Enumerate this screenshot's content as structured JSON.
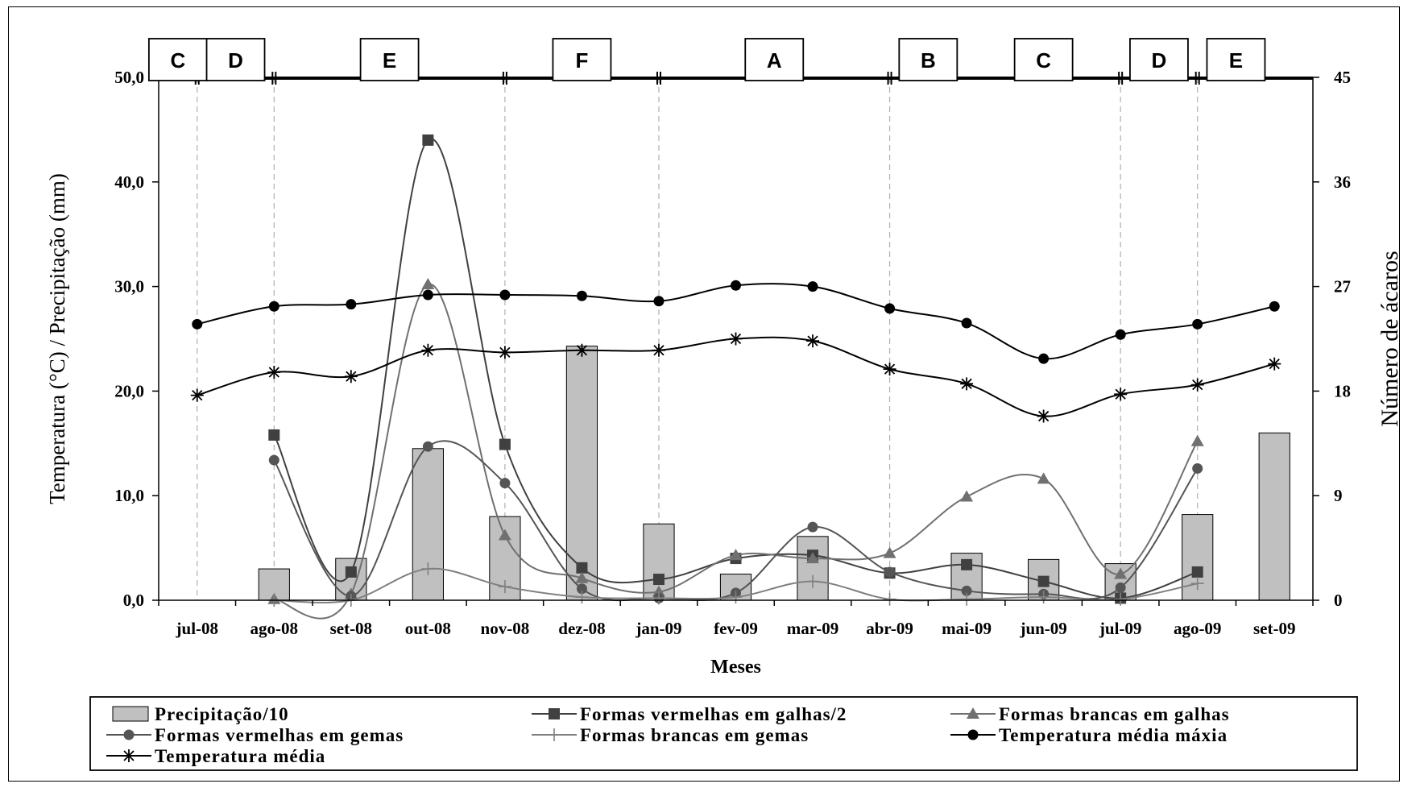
{
  "chart_data": {
    "type": "line",
    "xlabel": "Meses",
    "ylabel_left": "Temperatura (°C) / Precipitação (mm)",
    "ylabel_right": "Número de ácaros",
    "ylim_left": [
      0,
      50
    ],
    "ylim_right": [
      0,
      45
    ],
    "yticks_left": [
      "0,0",
      "10,0",
      "20,0",
      "30,0",
      "40,0",
      "50,0"
    ],
    "yticks_right": [
      "0",
      "9",
      "18",
      "27",
      "36",
      "45"
    ],
    "categories": [
      "jul-08",
      "ago-08",
      "set-08",
      "out-08",
      "nov-08",
      "dez-08",
      "jan-09",
      "fev-09",
      "mar-09",
      "abr-09",
      "mai-09",
      "jun-09",
      "jul-09",
      "ago-09",
      "set-09"
    ],
    "phases": [
      {
        "label": "C",
        "start": 0,
        "end": 0.5
      },
      {
        "label": "D",
        "start": 0.5,
        "end": 1.5
      },
      {
        "label": "E",
        "start": 1.5,
        "end": 4.5
      },
      {
        "label": "F",
        "start": 4.5,
        "end": 6.5
      },
      {
        "label": "A",
        "start": 6.5,
        "end": 9.5
      },
      {
        "label": "B",
        "start": 9.5,
        "end": 10.5
      },
      {
        "label": "C",
        "start": 10.5,
        "end": 12.5
      },
      {
        "label": "D",
        "start": 12.5,
        "end": 13.5
      },
      {
        "label": "E",
        "start": 13.5,
        "end": 14.5
      }
    ],
    "phase_dividers": [
      0.5,
      1.5,
      4.5,
      6.5,
      9.5,
      12.5,
      13.5
    ],
    "series": [
      {
        "name": "Precipitação/10",
        "kind": "bar",
        "axis": "left",
        "color": "#c0c0c0",
        "values": [
          0,
          3.0,
          4.0,
          14.5,
          8.0,
          24.3,
          7.3,
          2.5,
          6.1,
          0,
          4.5,
          3.9,
          3.5,
          8.2,
          16.0
        ]
      },
      {
        "name": "Formas vermelhas em galhas/2",
        "kind": "line",
        "axis": "left",
        "marker": "square",
        "color": "#404040",
        "values": [
          null,
          15.8,
          2.7,
          44.0,
          14.9,
          3.1,
          2.0,
          4.0,
          4.3,
          2.6,
          3.4,
          1.8,
          0.2,
          2.7,
          null
        ]
      },
      {
        "name": "Formas brancas em galhas",
        "kind": "line",
        "axis": "left",
        "marker": "triangle",
        "color": "#707070",
        "values": [
          null,
          0.1,
          0.6,
          30.2,
          6.2,
          2.1,
          0.8,
          4.3,
          4.0,
          4.5,
          9.9,
          11.6,
          2.5,
          15.2,
          null
        ]
      },
      {
        "name": "Formas vermelhas em gemas",
        "kind": "line",
        "axis": "left",
        "marker": "circle",
        "color": "#555555",
        "values": [
          null,
          13.4,
          0.4,
          14.7,
          11.2,
          1.1,
          0.2,
          0.7,
          7.0,
          2.7,
          0.9,
          0.6,
          1.2,
          12.6,
          null
        ]
      },
      {
        "name": "Formas brancas em gemas",
        "kind": "line",
        "axis": "left",
        "marker": "plus",
        "color": "#808080",
        "values": [
          null,
          0,
          0,
          3.0,
          1.3,
          0.3,
          0.2,
          0.3,
          1.8,
          0.1,
          0.1,
          0.3,
          0.1,
          1.6,
          null
        ]
      },
      {
        "name": "Temperatura média máxia",
        "kind": "line",
        "axis": "left",
        "marker": "dot",
        "color": "#000000",
        "values": [
          26.4,
          28.1,
          28.3,
          29.2,
          29.2,
          29.1,
          28.6,
          30.1,
          30.0,
          27.9,
          26.5,
          23.1,
          25.4,
          26.4,
          28.1
        ]
      },
      {
        "name": "Temperatura média",
        "kind": "line",
        "axis": "left",
        "marker": "star",
        "color": "#000000",
        "values": [
          19.6,
          21.8,
          21.4,
          23.9,
          23.7,
          23.9,
          23.9,
          25.0,
          24.8,
          22.1,
          20.7,
          17.6,
          19.7,
          20.6,
          22.6
        ]
      }
    ],
    "legend_placement": "bottom"
  }
}
